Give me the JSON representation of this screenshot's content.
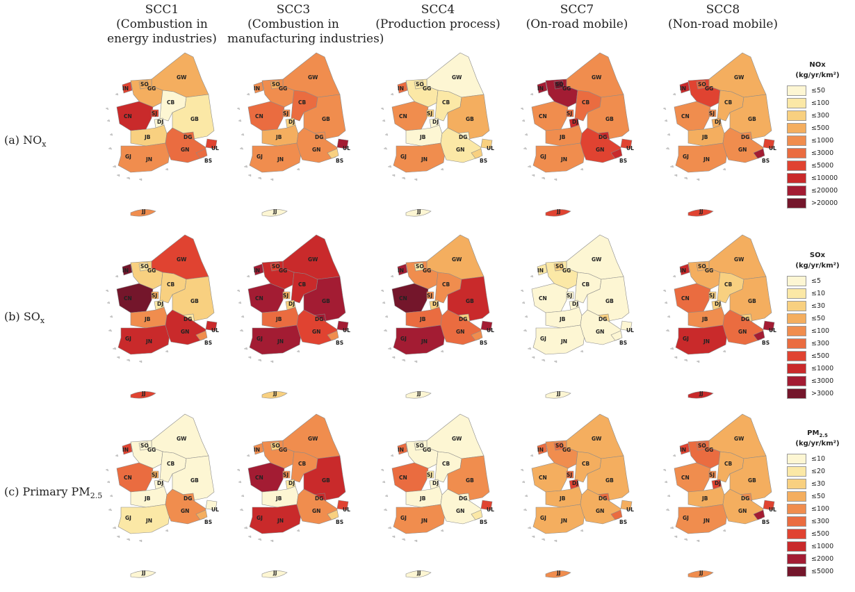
{
  "columns": [
    {
      "id": "SCC1",
      "lines": [
        "SCC1",
        "(Combustion in",
        "energy industries)"
      ]
    },
    {
      "id": "SCC3",
      "lines": [
        "SCC3",
        "(Combustion in",
        "manufacturing industries)"
      ]
    },
    {
      "id": "SCC4",
      "lines": [
        "SCC4",
        "(Production process)"
      ]
    },
    {
      "id": "SCC7",
      "lines": [
        "SCC7",
        "(On-road mobile)"
      ]
    },
    {
      "id": "SCC8",
      "lines": [
        "SCC8",
        "(Non-road mobile)"
      ]
    }
  ],
  "rows": [
    {
      "id": "nox",
      "label_prefix": "(a) NO",
      "label_sub": "x"
    },
    {
      "id": "sox",
      "label_prefix": "(b) SO",
      "label_sub": "x"
    },
    {
      "id": "pm25",
      "label_prefix": "(c) Primary PM",
      "label_sub": "2.5"
    }
  ],
  "region_codes": [
    "GW",
    "GG",
    "SO",
    "IN",
    "CB",
    "CN",
    "SJ",
    "DJ",
    "GB",
    "DG",
    "UL",
    "JB",
    "GJ",
    "JN",
    "GN",
    "BS",
    "JJ"
  ],
  "palette": [
    "#fdf6d3",
    "#fbe8a6",
    "#f8d080",
    "#f4ae5f",
    "#f08d4e",
    "#ea6c40",
    "#e04331",
    "#c92a2b",
    "#a31c33",
    "#74162b"
  ],
  "legends": [
    {
      "row": "nox",
      "title_prefix": "NOx",
      "title_sub": "",
      "unit": "(kg/yr/km²)",
      "items": [
        "≤50",
        "≤100",
        "≤300",
        "≤500",
        "≤1000",
        "≤3000",
        "≤5000",
        "≤10000",
        "≤20000",
        ">20000"
      ]
    },
    {
      "row": "sox",
      "title_prefix": "SOx",
      "title_sub": "",
      "unit": "(kg/yr/km²)",
      "items": [
        "≤5",
        "≤10",
        "≤30",
        "≤50",
        "≤100",
        "≤300",
        "≤500",
        "≤1000",
        "≤3000",
        ">3000"
      ]
    },
    {
      "row": "pm25",
      "title_prefix": "PM",
      "title_sub": "2.5",
      "unit": "(kg/yr/km²)",
      "items": [
        "≤10",
        "≤20",
        "≤30",
        "≤50",
        "≤100",
        "≤300",
        "≤500",
        "≤1000",
        "≤2000",
        "≤5000"
      ]
    }
  ],
  "map_classes": {
    "nox": {
      "SCC1": {
        "GW": 3,
        "GG": 3,
        "SO": 3,
        "IN": 6,
        "CB": 0,
        "CN": 7,
        "SJ": 6,
        "DJ": 0,
        "GB": 1,
        "DG": 5,
        "UL": 6,
        "JB": 2,
        "GJ": 5,
        "JN": 4,
        "GN": 5,
        "BS": 5,
        "JJ": 4
      },
      "SCC3": {
        "GW": 4,
        "GG": 4,
        "SO": 3,
        "IN": 4,
        "CB": 5,
        "CN": 5,
        "SJ": 4,
        "DJ": 2,
        "GB": 4,
        "DG": 4,
        "UL": 8,
        "JB": 3,
        "GJ": 4,
        "JN": 4,
        "GN": 4,
        "BS": 2,
        "JJ": 0
      },
      "SCC4": {
        "GW": 0,
        "GG": 1,
        "SO": 1,
        "IN": 5,
        "CB": 1,
        "CN": 4,
        "SJ": 2,
        "DJ": 0,
        "GB": 3,
        "DG": 0,
        "UL": 2,
        "JB": 0,
        "GJ": 4,
        "JN": 4,
        "GN": 1,
        "BS": 2,
        "JJ": 0
      },
      "SCC7": {
        "GW": 4,
        "GG": 8,
        "SO": 9,
        "IN": 8,
        "CB": 5,
        "CN": 4,
        "SJ": 5,
        "DJ": 7,
        "GB": 4,
        "DG": 7,
        "UL": 6,
        "JB": 4,
        "GJ": 7,
        "JN": 4,
        "GN": 6,
        "BS": 7,
        "JJ": 6
      },
      "SCC8": {
        "GW": 3,
        "GG": 6,
        "SO": 5,
        "IN": 7,
        "CB": 3,
        "CN": 4,
        "SJ": 4,
        "DJ": 3,
        "GB": 3,
        "DG": 4,
        "UL": 6,
        "JB": 3,
        "GJ": 5,
        "JN": 4,
        "GN": 4,
        "BS": 8,
        "JJ": 6
      }
    },
    "sox": {
      "SCC1": {
        "GW": 6,
        "GG": 2,
        "SO": 1,
        "IN": 9,
        "CB": 2,
        "CN": 9,
        "SJ": 3,
        "DJ": 1,
        "GB": 2,
        "DG": 1,
        "UL": 7,
        "JB": 4,
        "GJ": 8,
        "JN": 7,
        "GN": 7,
        "BS": 4,
        "JJ": 6
      },
      "SCC3": {
        "GW": 7,
        "GG": 7,
        "SO": 6,
        "IN": 8,
        "CB": 7,
        "CN": 8,
        "SJ": 3,
        "DJ": 2,
        "GB": 8,
        "DG": 8,
        "UL": 8,
        "JB": 5,
        "GJ": 5,
        "JN": 8,
        "GN": 6,
        "BS": 4,
        "JJ": 2
      },
      "SCC4": {
        "GW": 3,
        "GG": 4,
        "SO": 1,
        "IN": 8,
        "CB": 4,
        "CN": 9,
        "SJ": 4,
        "DJ": 2,
        "GB": 7,
        "DG": 2,
        "UL": 8,
        "JB": 5,
        "GJ": 7,
        "JN": 8,
        "GN": 5,
        "BS": 4,
        "JJ": 0
      },
      "SCC7": {
        "GW": 0,
        "GG": 1,
        "SO": 2,
        "IN": 1,
        "CB": 0,
        "CN": 0,
        "SJ": 0,
        "DJ": 0,
        "GB": 0,
        "DG": 2,
        "UL": 0,
        "JB": 0,
        "GJ": 0,
        "JN": 0,
        "GN": 0,
        "BS": 0,
        "JJ": 0
      },
      "SCC8": {
        "GW": 3,
        "GG": 3,
        "SO": 3,
        "IN": 7,
        "CB": 2,
        "CN": 5,
        "SJ": 2,
        "DJ": 2,
        "GB": 3,
        "DG": 2,
        "UL": 8,
        "JB": 4,
        "GJ": 7,
        "JN": 7,
        "GN": 5,
        "BS": 8,
        "JJ": 7
      }
    },
    "pm25": {
      "SCC1": {
        "GW": 0,
        "GG": 0,
        "SO": 0,
        "IN": 6,
        "CB": 0,
        "CN": 5,
        "SJ": 3,
        "DJ": 0,
        "GB": 0,
        "DG": 4,
        "UL": 0,
        "JB": 0,
        "GJ": 1,
        "JN": 1,
        "GN": 4,
        "BS": 3,
        "JJ": 0
      },
      "SCC3": {
        "GW": 4,
        "GG": 4,
        "SO": 2,
        "IN": 4,
        "CB": 4,
        "CN": 8,
        "SJ": 4,
        "DJ": 1,
        "GB": 7,
        "DG": 7,
        "UL": 6,
        "JB": 0,
        "GJ": 6,
        "JN": 7,
        "GN": 4,
        "BS": 2,
        "JJ": 0
      },
      "SCC4": {
        "GW": 0,
        "GG": 0,
        "SO": 0,
        "IN": 5,
        "CB": 0,
        "CN": 5,
        "SJ": 1,
        "DJ": 0,
        "GB": 4,
        "DG": 0,
        "UL": 6,
        "JB": 0,
        "GJ": 4,
        "JN": 4,
        "GN": 0,
        "BS": 1,
        "JJ": 0
      },
      "SCC7": {
        "GW": 3,
        "GG": 4,
        "SO": 5,
        "IN": 5,
        "CB": 3,
        "CN": 3,
        "SJ": 5,
        "DJ": 6,
        "GB": 3,
        "DG": 5,
        "UL": 3,
        "JB": 3,
        "GJ": 3,
        "JN": 3,
        "GN": 3,
        "BS": 5,
        "JJ": 4
      },
      "SCC8": {
        "GW": 3,
        "GG": 5,
        "SO": 5,
        "IN": 6,
        "CB": 3,
        "CN": 4,
        "SJ": 4,
        "DJ": 6,
        "GB": 3,
        "DG": 4,
        "UL": 6,
        "JB": 3,
        "GJ": 5,
        "JN": 4,
        "GN": 3,
        "BS": 8,
        "JJ": 4
      }
    }
  }
}
